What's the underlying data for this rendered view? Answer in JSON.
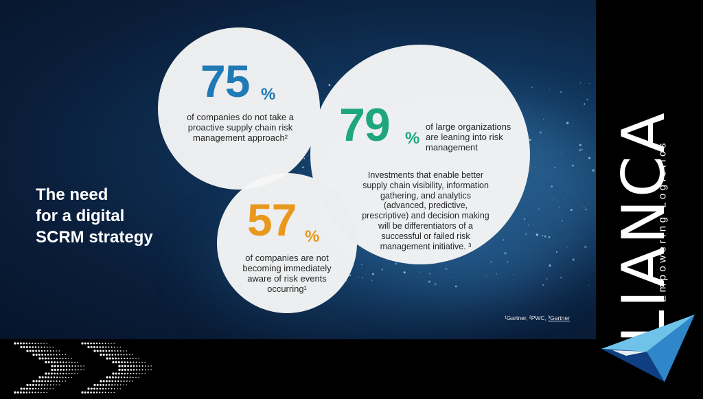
{
  "stats": [
    {
      "number": "75",
      "percent": "%",
      "text_lines": [
        "of companies do not take a",
        "proactive supply chain risk",
        "management approach²"
      ],
      "color": "#1f7ab5"
    },
    {
      "number": "79",
      "percent": "%",
      "text_lines": [
        "of large organizations",
        "are leaning into risk",
        "management"
      ],
      "color": "#1fa77c"
    },
    {
      "number": "57",
      "percent": "%",
      "text_lines": [
        "of companies are not",
        "becoming immediately",
        "aware of risk events",
        "occurring¹"
      ],
      "color": "#e8991d"
    }
  ],
  "investments_text": [
    "Investments that enable better",
    "supply chain visibility, information",
    "gathering, and analytics",
    "(advanced, predictive,",
    "prescriptive) and decision making",
    "will be differentiators of a",
    "successful or failed risk",
    "management initiative. ³"
  ],
  "heading": [
    "The need",
    "for a digital",
    "SCRM strategy"
  ],
  "footnote": {
    "prefix": "¹Gartner, ²PWC, ",
    "underlined": "³Gartner"
  },
  "logo": {
    "name": "LIANCA",
    "tagline": "Empowering Logistics",
    "icon": "triangle-logo-icon"
  },
  "decoration": {
    "icon": "chevron-dots-icon",
    "dot_color": "#ffffff"
  }
}
